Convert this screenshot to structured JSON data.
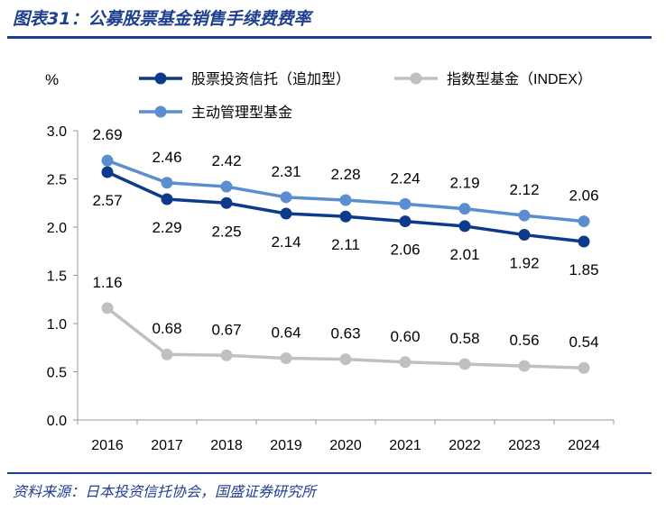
{
  "header": {
    "title": "图表31：公募股票基金销售手续费费率"
  },
  "footer": {
    "source": "资料来源：日本投资信托协会，国盛证券研究所"
  },
  "chart_data": {
    "type": "line",
    "title": "图表31：公募股票基金销售手续费费率",
    "xlabel": "",
    "ylabel": "%",
    "ylim": [
      0,
      3.0
    ],
    "yticks": [
      "0.0",
      "0.5",
      "1.0",
      "1.5",
      "2.0",
      "2.5",
      "3.0"
    ],
    "grid": false,
    "legend_position": "top",
    "categories": [
      "2016",
      "2017",
      "2018",
      "2019",
      "2020",
      "2021",
      "2022",
      "2023",
      "2024"
    ],
    "series": [
      {
        "name": "股票投资信托（追加型）",
        "color": "#0e3a8c",
        "values": [
          2.57,
          2.29,
          2.25,
          2.14,
          2.11,
          2.06,
          2.01,
          1.92,
          1.85
        ],
        "labels": [
          "2.57",
          "2.29",
          "2.25",
          "2.14",
          "2.11",
          "2.06",
          "2.01",
          "1.92",
          "1.85"
        ],
        "label_side": "below"
      },
      {
        "name": "指数型基金（INDEX）",
        "color": "#c0c0c0",
        "values": [
          1.16,
          0.68,
          0.67,
          0.64,
          0.63,
          0.6,
          0.58,
          0.56,
          0.54
        ],
        "labels": [
          "1.16",
          "0.68",
          "0.67",
          "0.64",
          "0.63",
          "0.60",
          "0.58",
          "0.56",
          "0.54"
        ],
        "label_side": "above"
      },
      {
        "name": "主动管理型基金",
        "color": "#5b8ed1",
        "values": [
          2.69,
          2.46,
          2.42,
          2.31,
          2.28,
          2.24,
          2.19,
          2.12,
          2.06
        ],
        "labels": [
          "2.69",
          "2.46",
          "2.42",
          "2.31",
          "2.28",
          "2.24",
          "2.19",
          "2.12",
          "2.06"
        ],
        "label_side": "above"
      }
    ]
  }
}
